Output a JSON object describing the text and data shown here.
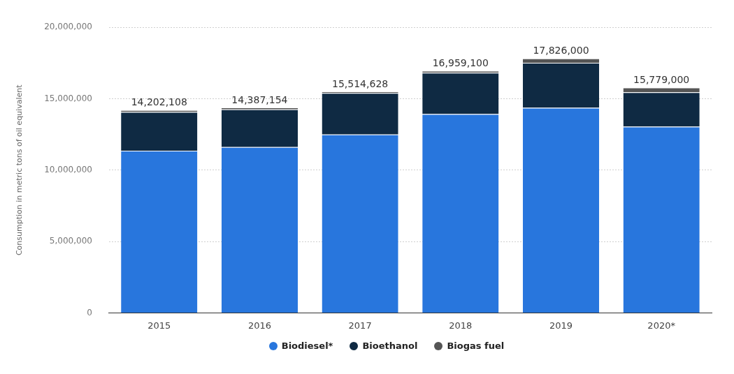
{
  "chart_data": {
    "type": "bar",
    "stacked": true,
    "ylabel": "Consumption in metric tons of oil equivalent",
    "categories": [
      "2015",
      "2016",
      "2017",
      "2018",
      "2019",
      "2020*"
    ],
    "series": [
      {
        "name": "Biodiesel*",
        "color": "#2876dd",
        "values": [
          11360000,
          11620000,
          12490000,
          13930000,
          14360000,
          13040000
        ]
      },
      {
        "name": "Bioethanol",
        "color": "#0f2a43",
        "values": [
          2710000,
          2640000,
          2910000,
          2890000,
          3160000,
          2410000
        ]
      },
      {
        "name": "Biogas fuel",
        "color": "#555555",
        "values": [
          132108,
          127154,
          114628,
          139100,
          306000,
          329000
        ]
      }
    ],
    "totals": [
      "14,202,108",
      "14,387,154",
      "15,514,628",
      "16,959,100",
      "17,826,000",
      "15,779,000"
    ],
    "ylim": [
      0,
      20000000
    ],
    "yticks": [
      0,
      {
        "value": 5000000,
        "label": "5,000,000"
      },
      {
        "value": 10000000,
        "label": "10,000,000"
      },
      {
        "value": 15000000,
        "label": "15,000,000"
      },
      {
        "value": 20000000,
        "label": "20,000,000"
      }
    ],
    "grid": "y",
    "legend": "bottom"
  }
}
